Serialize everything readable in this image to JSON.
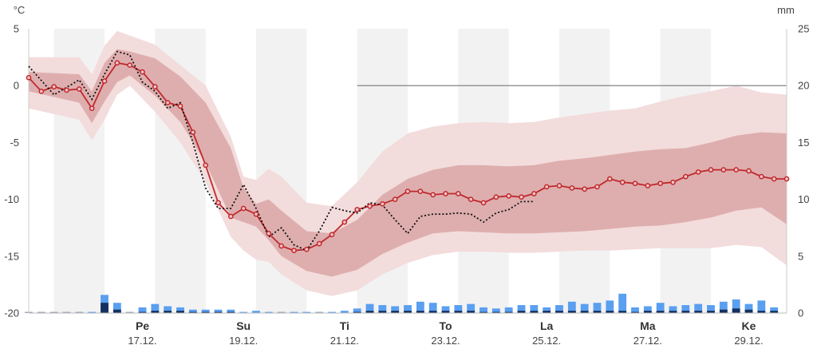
{
  "chart_data": {
    "type": "line",
    "title": "",
    "y_unit_left": "°C",
    "y_unit_right": "mm",
    "ylim": [
      -20,
      5
    ],
    "y2lim": [
      0,
      25
    ],
    "yticks": [
      "5",
      "0",
      "-5",
      "-10",
      "-15",
      "-20"
    ],
    "yticks_values": [
      5,
      0,
      -5,
      -10,
      -15,
      -20
    ],
    "y2ticks": [
      "25",
      "20",
      "15",
      "10",
      "5",
      "0"
    ],
    "y2ticks_values": [
      25,
      20,
      15,
      10,
      5,
      0
    ],
    "xlim": [
      0,
      15
    ],
    "zero_line": 0,
    "day_labels": [
      {
        "day": "Pe",
        "date": "17.12.",
        "x": 2.25
      },
      {
        "day": "Su",
        "date": "19.12.",
        "x": 4.25
      },
      {
        "day": "Ti",
        "date": "21.12.",
        "x": 6.25
      },
      {
        "day": "To",
        "date": "23.12.",
        "x": 8.25
      },
      {
        "day": "La",
        "date": "25.12.",
        "x": 10.25
      },
      {
        "day": "Ma",
        "date": "27.12.",
        "x": 12.25
      },
      {
        "day": "Ke",
        "date": "29.12.",
        "x": 14.25
      }
    ],
    "shaded_days": [
      [
        0.5,
        1.5
      ],
      [
        2.5,
        3.5
      ],
      [
        4.5,
        5.5
      ],
      [
        6.5,
        7.5
      ],
      [
        8.5,
        9.5
      ],
      [
        10.5,
        11.5
      ],
      [
        12.5,
        13.5
      ]
    ],
    "median": {
      "x": [
        0.0,
        0.25,
        0.5,
        0.75,
        1.0,
        1.25,
        1.5,
        1.75,
        2.0,
        2.25,
        2.5,
        2.75,
        3.0,
        3.25,
        3.5,
        3.75,
        4.0,
        4.25,
        4.5,
        4.75,
        5.0,
        5.25,
        5.5,
        5.75,
        6.0,
        6.25,
        6.5,
        6.75,
        7.0,
        7.25,
        7.5,
        7.75,
        8.0,
        8.25,
        8.5,
        8.75,
        9.0,
        9.25,
        9.5,
        9.75,
        10.0,
        10.25,
        10.5,
        10.75,
        11.0,
        11.25,
        11.5,
        11.75,
        12.0,
        12.25,
        12.5,
        12.75,
        13.0,
        13.25,
        13.5,
        13.75,
        14.0,
        14.25,
        14.5,
        14.75,
        15.0
      ],
      "values": [
        0.7,
        -0.5,
        -0.1,
        -0.4,
        -0.3,
        -2.0,
        0.4,
        2.0,
        1.8,
        1.2,
        -0.1,
        -1.5,
        -1.8,
        -4.1,
        -7.0,
        -10.3,
        -11.5,
        -10.8,
        -11.3,
        -13.0,
        -14.1,
        -14.5,
        -14.4,
        -13.9,
        -13.1,
        -12.0,
        -10.9,
        -10.6,
        -10.4,
        -10.0,
        -9.3,
        -9.3,
        -9.6,
        -9.5,
        -9.5,
        -10.0,
        -10.3,
        -9.8,
        -9.7,
        -9.8,
        -9.5,
        -8.9,
        -8.8,
        -9.0,
        -9.1,
        -8.9,
        -8.2,
        -8.5,
        -8.6,
        -8.8,
        -8.6,
        -8.5,
        -8.0,
        -7.6,
        -7.4,
        -7.4,
        -7.4,
        -7.5,
        -8.0,
        -8.2,
        -8.2
      ]
    },
    "inner_band": {
      "x": [
        0.0,
        1.0,
        1.25,
        1.5,
        1.75,
        2.0,
        2.5,
        3.0,
        3.5,
        4.0,
        4.25,
        4.5,
        4.75,
        5.0,
        5.5,
        6.0,
        6.5,
        7.0,
        7.5,
        8.0,
        8.5,
        9.0,
        9.5,
        10.0,
        10.5,
        11.0,
        11.5,
        12.0,
        12.5,
        13.0,
        13.5,
        14.0,
        14.5,
        15.0
      ],
      "upper": [
        1.2,
        1.0,
        -0.5,
        2.0,
        3.2,
        3.0,
        2.4,
        0.8,
        -1.5,
        -5.5,
        -9.0,
        -10.4,
        -10.0,
        -11.0,
        -12.8,
        -13.0,
        -11.8,
        -9.6,
        -8.2,
        -7.4,
        -7.0,
        -7.0,
        -7.1,
        -7.0,
        -6.6,
        -6.4,
        -6.1,
        -5.8,
        -5.6,
        -5.5,
        -5.0,
        -4.4,
        -4.1,
        -4.2
      ],
      "lower": [
        -0.5,
        -1.5,
        -3.3,
        -1.4,
        0.3,
        0.9,
        -0.9,
        -3.2,
        -6.8,
        -11.6,
        -12.0,
        -12.4,
        -13.6,
        -15.0,
        -16.3,
        -16.8,
        -16.2,
        -14.8,
        -13.8,
        -13.0,
        -12.8,
        -12.9,
        -13.0,
        -13.0,
        -12.9,
        -12.8,
        -12.6,
        -12.4,
        -12.3,
        -12.0,
        -11.6,
        -11.0,
        -10.7,
        -12.2
      ]
    },
    "outer_band": {
      "x": [
        0.0,
        1.0,
        1.25,
        1.5,
        1.75,
        2.0,
        2.5,
        3.0,
        3.5,
        4.0,
        4.25,
        4.5,
        4.75,
        5.0,
        5.5,
        6.0,
        6.5,
        7.0,
        7.5,
        8.0,
        8.5,
        9.0,
        9.5,
        10.0,
        10.5,
        11.0,
        11.5,
        12.0,
        12.5,
        13.0,
        13.5,
        14.0,
        14.5,
        15.0
      ],
      "upper": [
        2.5,
        2.5,
        1.0,
        3.5,
        4.8,
        4.4,
        3.6,
        1.8,
        0.0,
        -4.5,
        -8.0,
        -8.3,
        -7.3,
        -8.0,
        -10.3,
        -10.6,
        -8.5,
        -5.8,
        -4.2,
        -3.6,
        -3.3,
        -3.2,
        -3.3,
        -3.2,
        -2.8,
        -2.5,
        -2.2,
        -2.0,
        -1.4,
        -0.9,
        -0.5,
        0.0,
        -0.6,
        -0.8
      ],
      "lower": [
        -2.0,
        -3.0,
        -4.8,
        -3.0,
        -0.8,
        0.0,
        -2.3,
        -5.0,
        -8.5,
        -13.3,
        -14.5,
        -15.3,
        -15.5,
        -16.6,
        -18.0,
        -18.5,
        -18.0,
        -16.6,
        -15.6,
        -14.9,
        -14.6,
        -14.6,
        -14.7,
        -14.7,
        -14.6,
        -14.5,
        -14.5,
        -14.4,
        -14.3,
        -14.3,
        -14.3,
        -14.0,
        -14.2,
        -15.8
      ]
    },
    "observed": {
      "x": [
        0.0,
        0.5,
        1.0,
        1.25,
        1.5,
        1.75,
        2.0,
        2.25,
        2.5,
        2.75,
        3.0,
        3.25,
        3.5,
        3.75,
        4.0,
        4.25,
        4.5,
        4.75,
        5.0,
        5.25,
        5.5,
        5.75,
        6.0,
        6.25,
        6.5,
        6.75,
        7.0,
        7.25,
        7.5,
        7.75,
        8.0,
        8.25,
        8.5,
        8.75,
        9.0,
        9.25,
        9.5,
        9.75,
        10.0
      ],
      "values": [
        1.7,
        -0.8,
        0.5,
        -1.2,
        1.0,
        3.0,
        2.7,
        0.3,
        -0.5,
        -2.0,
        -1.5,
        -5.0,
        -9.0,
        -10.8,
        -10.8,
        -8.7,
        -10.8,
        -13.3,
        -12.5,
        -14.0,
        -14.5,
        -12.8,
        -10.7,
        -11.0,
        -11.2,
        -10.3,
        -10.5,
        -11.8,
        -13.0,
        -11.5,
        -11.3,
        -11.3,
        -11.2,
        -11.3,
        -12.0,
        -11.2,
        -10.9,
        -10.2,
        -10.2
      ]
    },
    "precipitation": {
      "x": [
        0.0,
        0.25,
        0.5,
        0.75,
        1.0,
        1.25,
        1.5,
        1.75,
        2.0,
        2.25,
        2.5,
        2.75,
        3.0,
        3.25,
        3.5,
        3.75,
        4.0,
        4.25,
        4.5,
        4.75,
        5.0,
        5.25,
        5.5,
        5.75,
        6.0,
        6.25,
        6.5,
        6.75,
        7.0,
        7.25,
        7.5,
        7.75,
        8.0,
        8.25,
        8.5,
        8.75,
        9.0,
        9.25,
        9.5,
        9.75,
        10.0,
        10.25,
        10.5,
        10.75,
        11.0,
        11.25,
        11.5,
        11.75,
        12.0,
        12.25,
        12.5,
        12.75,
        13.0,
        13.25,
        13.5,
        13.75,
        14.0,
        14.25,
        14.5,
        14.75
      ],
      "values": [
        0.0,
        0.0,
        0.0,
        0.0,
        0.0,
        0.1,
        1.6,
        0.9,
        0.0,
        0.5,
        0.8,
        0.6,
        0.5,
        0.3,
        0.3,
        0.3,
        0.3,
        0.1,
        0.2,
        0.1,
        0.0,
        0.1,
        0.1,
        0.0,
        0.1,
        0.2,
        0.4,
        0.8,
        0.7,
        0.6,
        0.7,
        1.0,
        0.9,
        0.6,
        0.7,
        0.8,
        0.5,
        0.4,
        0.5,
        0.7,
        0.7,
        0.5,
        0.7,
        1.0,
        0.8,
        0.9,
        1.1,
        1.7,
        0.5,
        0.6,
        0.9,
        0.6,
        0.7,
        0.8,
        0.7,
        1.0,
        1.2,
        0.8,
        1.1,
        0.5
      ],
      "dark": [
        0.0,
        0.0,
        0.0,
        0.0,
        0.0,
        0.0,
        0.9,
        0.3,
        0.0,
        0.1,
        0.2,
        0.2,
        0.2,
        0.1,
        0.1,
        0.1,
        0.1,
        0.0,
        0.0,
        0.0,
        0.0,
        0.0,
        0.0,
        0.0,
        0.0,
        0.0,
        0.1,
        0.2,
        0.2,
        0.2,
        0.2,
        0.2,
        0.2,
        0.2,
        0.2,
        0.2,
        0.1,
        0.1,
        0.1,
        0.2,
        0.2,
        0.2,
        0.2,
        0.2,
        0.2,
        0.2,
        0.2,
        0.2,
        0.1,
        0.2,
        0.2,
        0.2,
        0.2,
        0.2,
        0.2,
        0.3,
        0.4,
        0.3,
        0.2,
        0.2
      ]
    },
    "colors": {
      "median": "#c0282d",
      "median_marker_fill": "#f2c5c5",
      "inner_band": "#deaeae",
      "outer_band": "#f3dcdc",
      "observed": "#111111",
      "zero_line": "#777777",
      "day_shade": "#f2f2f2",
      "precip_light": "#5a9ff0",
      "precip_dark": "#14305e"
    },
    "grid": false,
    "legend": "none"
  }
}
